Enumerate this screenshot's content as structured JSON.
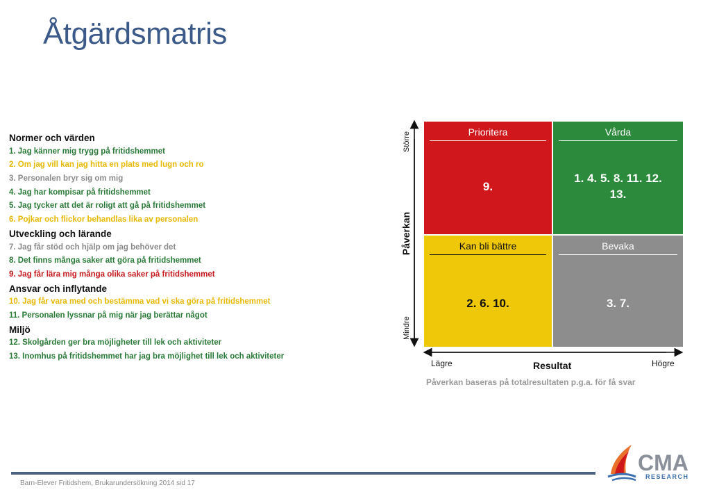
{
  "title": "Åtgärdsmatris",
  "groups": [
    {
      "heading": "Normer och värden",
      "items": [
        {
          "text": "1. Jag känner mig trygg på fritidshemmet",
          "color": "green"
        },
        {
          "text": "2. Om jag vill kan jag hitta en plats med lugn och ro",
          "color": "yellow"
        },
        {
          "text": "3. Personalen bryr sig om mig",
          "color": "grey"
        },
        {
          "text": "4. Jag har kompisar på fritidshemmet",
          "color": "green"
        },
        {
          "text": "5. Jag tycker att det är roligt att gå på fritidshemmet",
          "color": "green"
        },
        {
          "text": "6. Pojkar och flickor behandlas lika av personalen",
          "color": "yellow"
        }
      ]
    },
    {
      "heading": "Utveckling och lärande",
      "items": [
        {
          "text": "7. Jag får stöd och hjälp om jag behöver det",
          "color": "grey"
        },
        {
          "text": "8. Det finns många saker att göra på fritidshemmet",
          "color": "green"
        },
        {
          "text": "9. Jag får lära mig många olika saker på fritidshemmet",
          "color": "red"
        }
      ]
    },
    {
      "heading": "Ansvar och inflytande",
      "items": [
        {
          "text": "10. Jag får vara med och bestämma vad vi ska göra på fritidshemmet",
          "color": "yellow"
        },
        {
          "text": "11. Personalen lyssnar på mig när jag berättar något",
          "color": "green"
        }
      ]
    },
    {
      "heading": "Miljö",
      "items": [
        {
          "text": "12. Skolgården ger bra möjligheter till lek och aktiviteter",
          "color": "green"
        },
        {
          "text": "13. Inomhus på fritidshemmet har jag bra möjlighet till lek och aktiviteter",
          "color": "green"
        }
      ]
    }
  ],
  "matrix": {
    "top_left": {
      "label": "Prioritera",
      "value": "9.",
      "color": "#d0171b"
    },
    "top_right": {
      "label": "Vårda",
      "value_line1": "1. 4. 5. 8. 11. 12.",
      "value_line2": "13.",
      "color": "#2b8a3b"
    },
    "bottom_left": {
      "label": "Kan bli bättre",
      "value": "2. 6. 10.",
      "color": "#efc80a"
    },
    "bottom_right": {
      "label": "Bevaka",
      "value": "3. 7.",
      "color": "#8d8d8d"
    },
    "y_axis": {
      "label": "Påverkan",
      "high": "Större",
      "low": "Mindre"
    },
    "x_axis": {
      "label": "Resultat",
      "low": "Lägre",
      "high": "Högre"
    },
    "note": "Påverkan baseras på totalresultaten p.g.a. för få svar"
  },
  "footer": {
    "text": "Barn-Elever Fritidshem, Brukarundersökning 2014 sid 17",
    "logo_text": "CMA",
    "logo_subtext": "RESEARCH"
  },
  "colors": {
    "green": "#2a7a38",
    "yellow": "#e8b800",
    "grey": "#8a8a8a",
    "red": "#c8181e",
    "title": "#3b5a8a"
  }
}
